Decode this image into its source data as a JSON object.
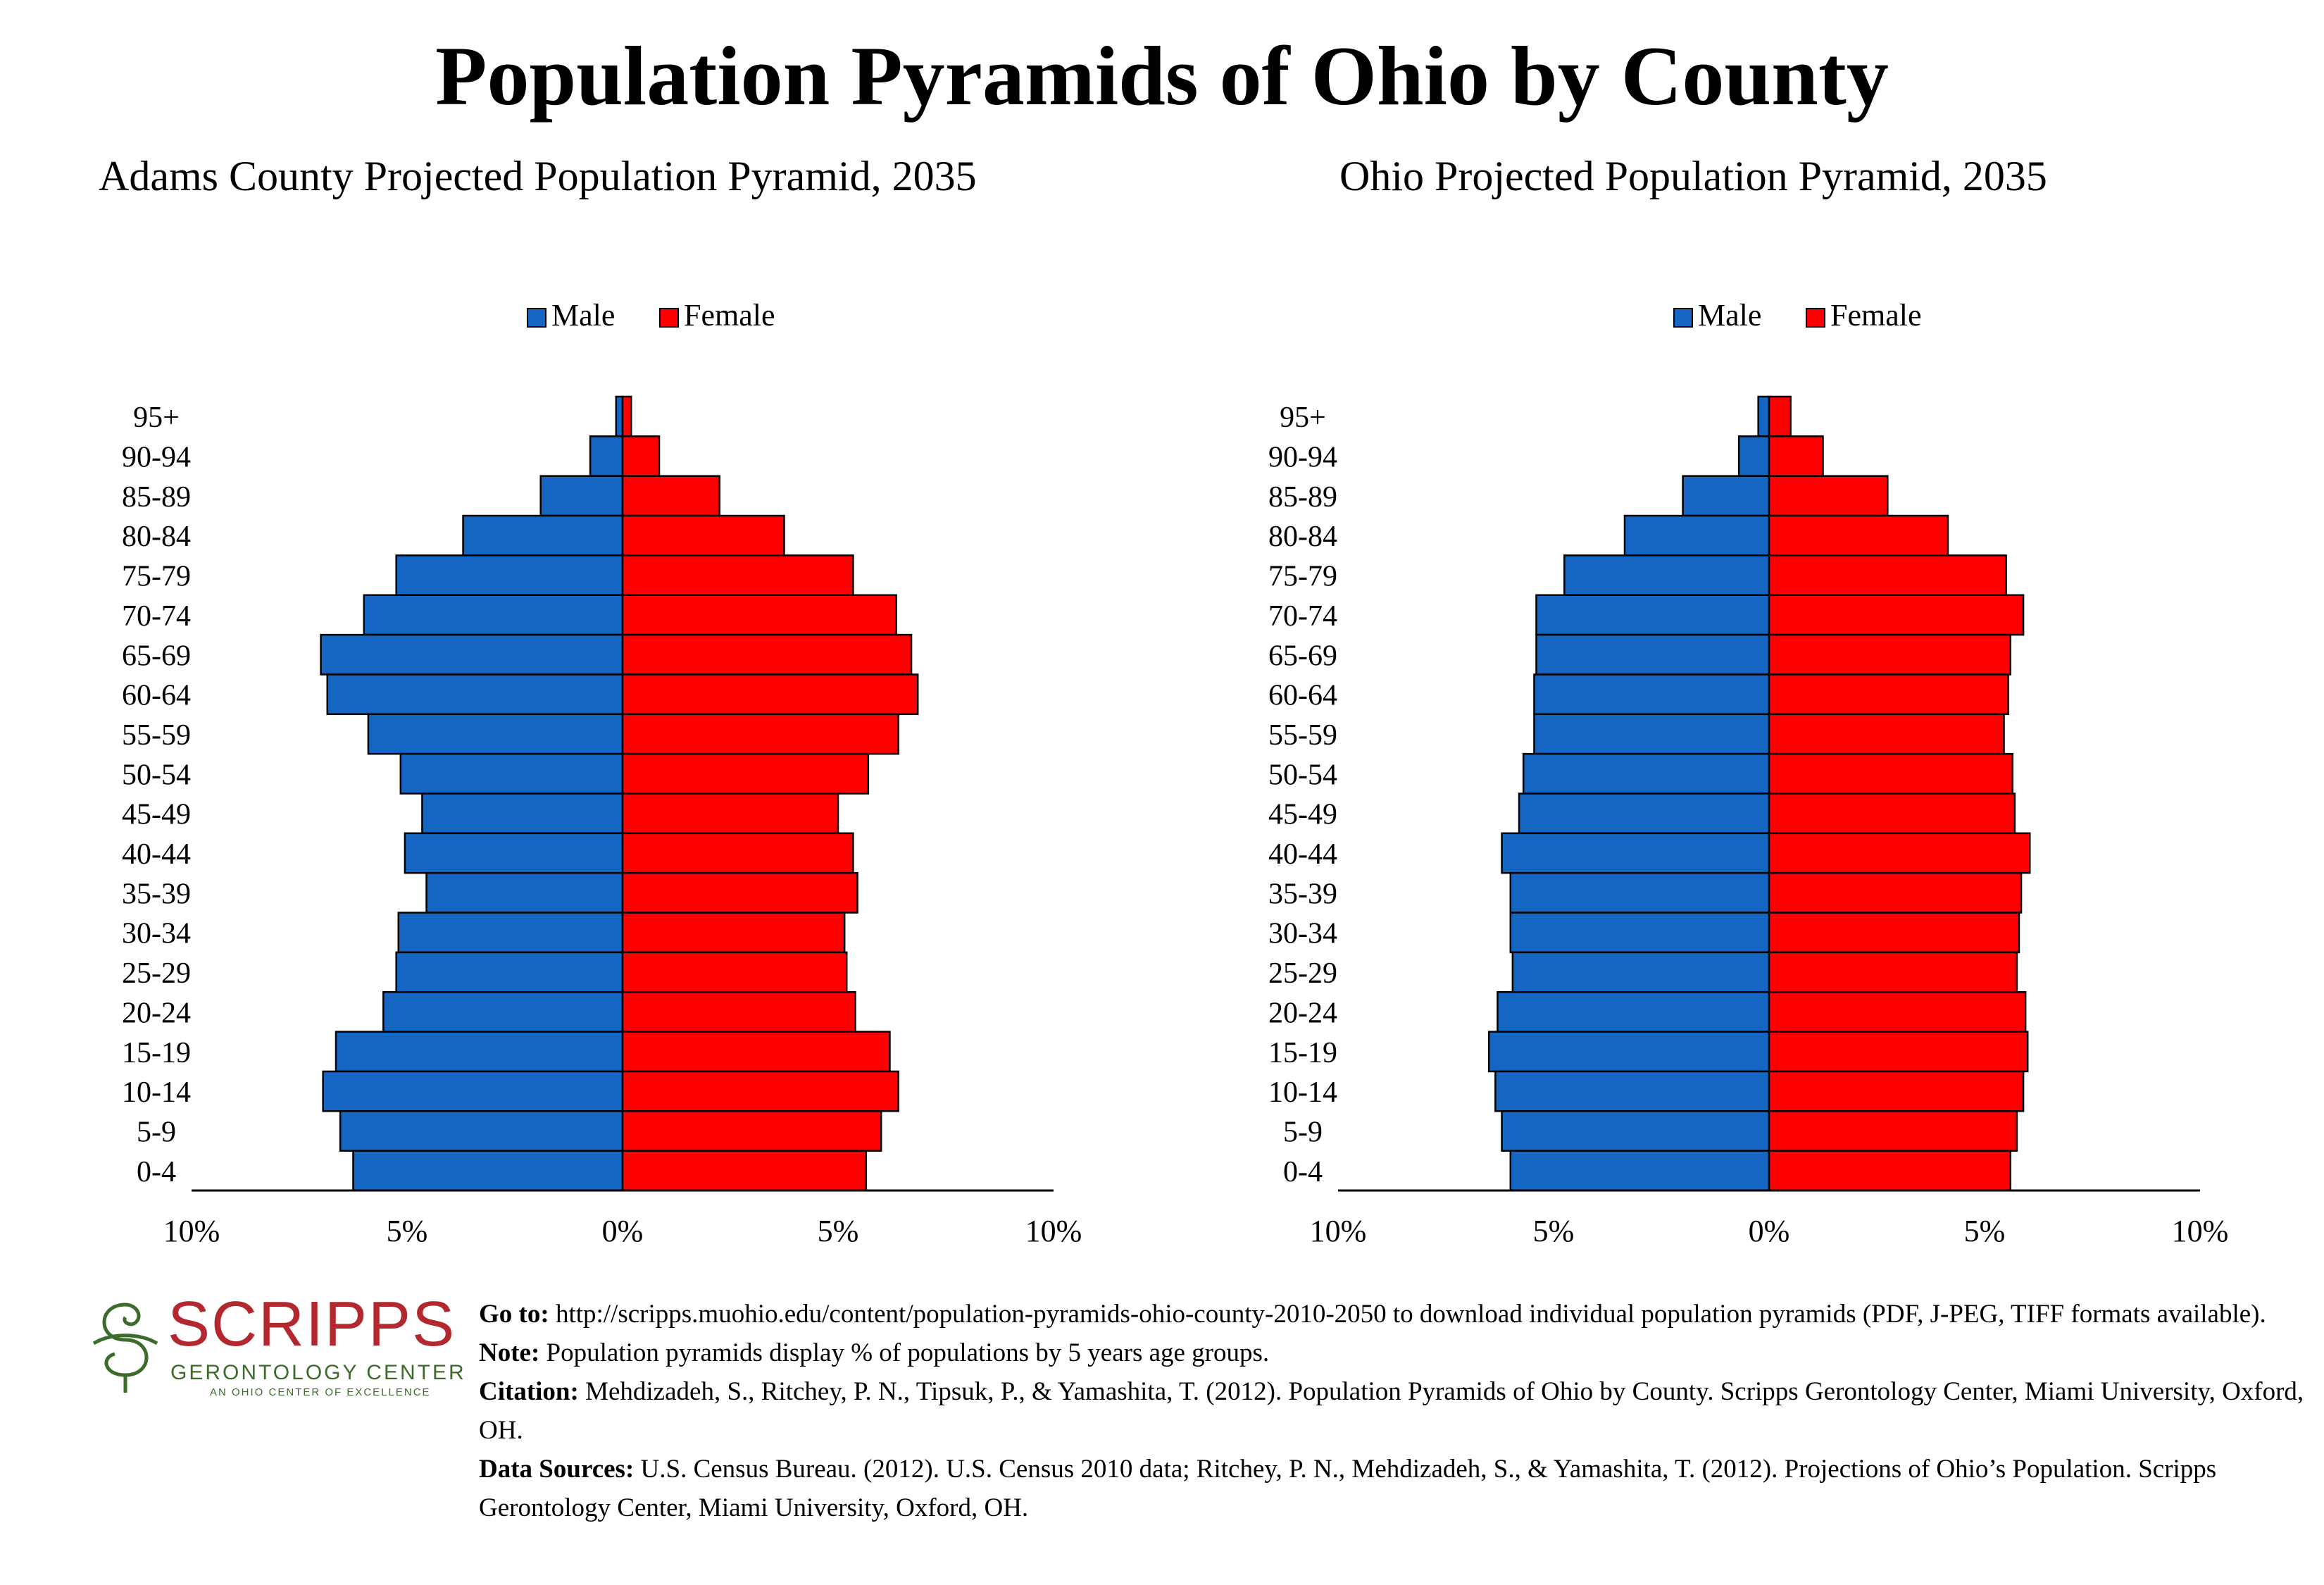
{
  "title": "Population Pyramids of Ohio by County",
  "legend": {
    "male": "Male",
    "female": "Female"
  },
  "colors": {
    "male": "#1466c2",
    "female": "#ff0000"
  },
  "chart_data": [
    {
      "type": "bar",
      "orientation": "horizontal-pyramid",
      "title": "Adams County Projected Population Pyramid, 2035",
      "legend_placement": "top-center",
      "grid": false,
      "xlim": [
        -10,
        10
      ],
      "x_ticks": [
        "10%",
        "5%",
        "0%",
        "5%",
        "10%"
      ],
      "categories": [
        "95+",
        "90-94",
        "85-89",
        "80-84",
        "75-79",
        "70-74",
        "65-69",
        "60-64",
        "55-59",
        "50-54",
        "45-49",
        "40-44",
        "35-39",
        "30-34",
        "25-29",
        "20-24",
        "15-19",
        "10-14",
        "5-9",
        "0-4"
      ],
      "series": [
        {
          "name": "Male",
          "values": [
            0.15,
            0.75,
            1.9,
            3.7,
            5.25,
            6.0,
            7.0,
            6.85,
            5.9,
            5.15,
            4.65,
            5.05,
            4.55,
            5.2,
            5.25,
            5.55,
            6.65,
            6.95,
            6.55,
            6.25
          ]
        },
        {
          "name": "Female",
          "values": [
            0.2,
            0.85,
            2.25,
            3.75,
            5.35,
            6.35,
            6.7,
            6.85,
            6.4,
            5.7,
            5.0,
            5.35,
            5.45,
            5.15,
            5.2,
            5.4,
            6.2,
            6.4,
            6.0,
            5.65
          ]
        }
      ]
    },
    {
      "type": "bar",
      "orientation": "horizontal-pyramid",
      "title": "Ohio Projected Population Pyramid, 2035",
      "legend_placement": "top-center",
      "grid": false,
      "xlim": [
        -10,
        10
      ],
      "x_ticks": [
        "10%",
        "5%",
        "0%",
        "5%",
        "10%"
      ],
      "categories": [
        "95+",
        "90-94",
        "85-89",
        "80-84",
        "75-79",
        "70-74",
        "65-69",
        "60-64",
        "55-59",
        "50-54",
        "45-49",
        "40-44",
        "35-39",
        "30-34",
        "25-29",
        "20-24",
        "15-19",
        "10-14",
        "5-9",
        "0-4"
      ],
      "series": [
        {
          "name": "Male",
          "values": [
            0.25,
            0.7,
            2.0,
            3.35,
            4.75,
            5.4,
            5.4,
            5.45,
            5.45,
            5.7,
            5.8,
            6.2,
            6.0,
            6.0,
            5.95,
            6.3,
            6.5,
            6.35,
            6.2,
            6.0
          ]
        },
        {
          "name": "Female",
          "values": [
            0.5,
            1.25,
            2.75,
            4.15,
            5.5,
            5.9,
            5.6,
            5.55,
            5.45,
            5.65,
            5.7,
            6.05,
            5.85,
            5.8,
            5.75,
            5.95,
            6.0,
            5.9,
            5.75,
            5.6
          ]
        }
      ]
    }
  ],
  "logo": {
    "name": "SCRIPPS",
    "subtitle": "GERONTOLOGY CENTER",
    "tagline": "AN OHIO CENTER OF EXCELLENCE"
  },
  "footer": {
    "goto_label": "Go to:",
    "goto_text": "http://scripps.muohio.edu/content/population-pyramids-ohio-county-2010-2050 to download individual population pyramids (PDF, J-PEG, TIFF formats available).",
    "note_label": "Note:",
    "note_text": "Population pyramids display % of populations by 5 years age groups.",
    "citation_label": "Citation:",
    "citation_text": "Mehdizadeh, S., Ritchey, P. N., Tipsuk, P., & Yamashita, T. (2012). Population Pyramids of Ohio by County. Scripps Gerontology Center, Miami University, Oxford, OH.",
    "sources_label": "Data Sources:",
    "sources_text": "U.S. Census Bureau. (2012). U.S. Census 2010 data; Ritchey, P. N., Mehdizadeh, S., & Yamashita, T. (2012). Projections of Ohio’s Population. Scripps Gerontology Center, Miami University, Oxford, OH."
  }
}
